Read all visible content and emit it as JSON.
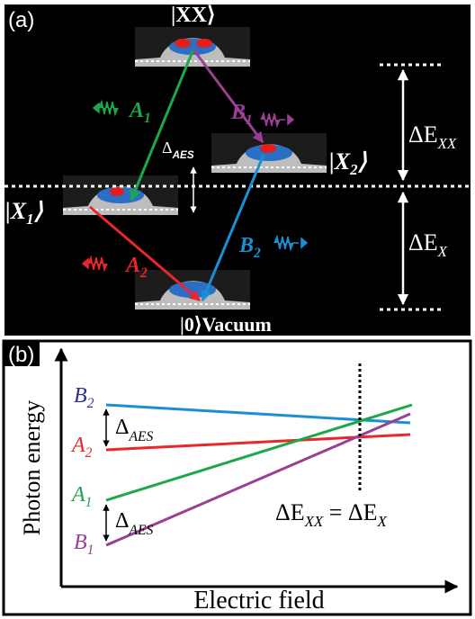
{
  "panel_a": {
    "label": "(a)",
    "states": {
      "xx": "|XX⟩",
      "x1": {
        "main": "|X",
        "sub": "1",
        "end": "⟩"
      },
      "x2": {
        "main": "|X",
        "sub": "2",
        "end": "⟩"
      },
      "vacuum": {
        "ket": "|0⟩",
        "name": "Vacuum"
      }
    },
    "transitions": {
      "a1": {
        "main": "A",
        "sub": "1"
      },
      "b1": {
        "main": "B",
        "sub": "1"
      },
      "a2": {
        "main": "A",
        "sub": "2"
      },
      "b2": {
        "main": "B",
        "sub": "2"
      }
    },
    "splitting": {
      "main": "Δ",
      "sub": "AES"
    },
    "energies": {
      "dexx": {
        "main": "ΔE",
        "sub": "XX"
      },
      "dex": {
        "main": "ΔE",
        "sub": "X"
      }
    }
  },
  "panel_b": {
    "label": "(b)",
    "y_axis": "Photon energy",
    "x_axis": "Electric field",
    "lines": {
      "b2": {
        "main": "B",
        "sub": "2"
      },
      "a2": {
        "main": "A",
        "sub": "2"
      },
      "a1": {
        "main": "A",
        "sub": "1"
      },
      "b1": {
        "main": "B",
        "sub": "1"
      }
    },
    "splitting_top": {
      "main": "Δ",
      "sub": "AES"
    },
    "splitting_bottom": {
      "main": "Δ",
      "sub": "AES"
    },
    "condition": {
      "left_main": "ΔE",
      "left_sub": "XX",
      "eq": " = ",
      "right_main": "ΔE",
      "right_sub": "X"
    }
  }
}
